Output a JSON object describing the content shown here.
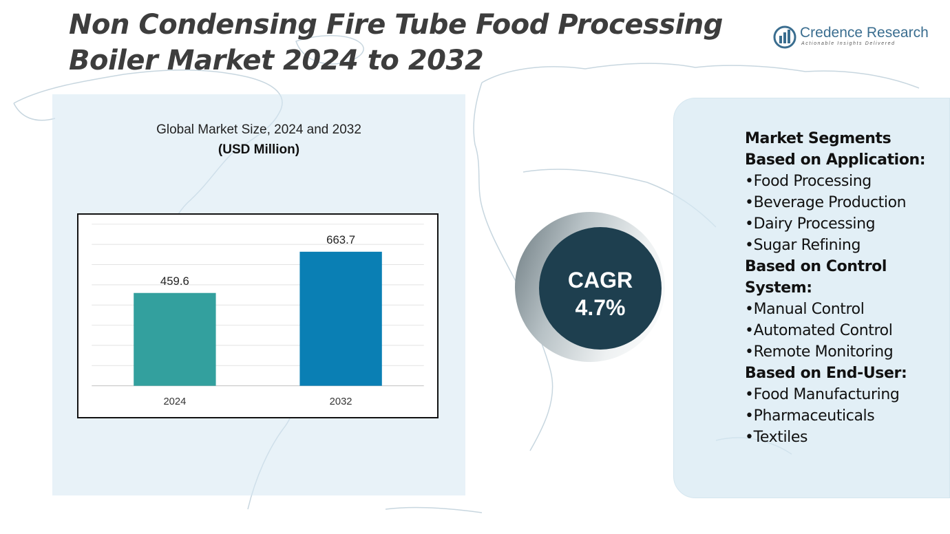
{
  "title": "Non Condensing Fire Tube Food Processing Boiler Market 2024 to 2032",
  "logo": {
    "name": "Credence Research",
    "tagline": "Actionable Insights Delivered",
    "icon": "bar-chart-logo-icon",
    "color": "#3a6d8f"
  },
  "chart_data": {
    "type": "bar",
    "title": "Global Market Size, 2024 and 2032",
    "subtitle": "(USD Million)",
    "categories": [
      "2024",
      "2032"
    ],
    "values": [
      459.6,
      663.7
    ],
    "value_labels": [
      "459.6",
      "663.7"
    ],
    "colors": [
      "#33a09e",
      "#0a7fb4"
    ],
    "ylim": [
      0,
      800
    ],
    "grid": true,
    "xlabel": "",
    "ylabel": ""
  },
  "cagr": {
    "label": "CAGR",
    "value": "4.7%"
  },
  "segments": {
    "title": "Market Segments",
    "groups": [
      {
        "heading": "Based on Application:",
        "items": [
          "Food Processing",
          "Beverage Production",
          "Dairy Processing",
          "Sugar Refining"
        ]
      },
      {
        "heading": "Based on Control System:",
        "items": [
          "Manual Control",
          "Automated Control",
          "Remote Monitoring"
        ]
      },
      {
        "heading": "Based on End-User:",
        "items": [
          "Food Manufacturing",
          "Pharmaceuticals",
          "Textiles"
        ]
      }
    ]
  }
}
